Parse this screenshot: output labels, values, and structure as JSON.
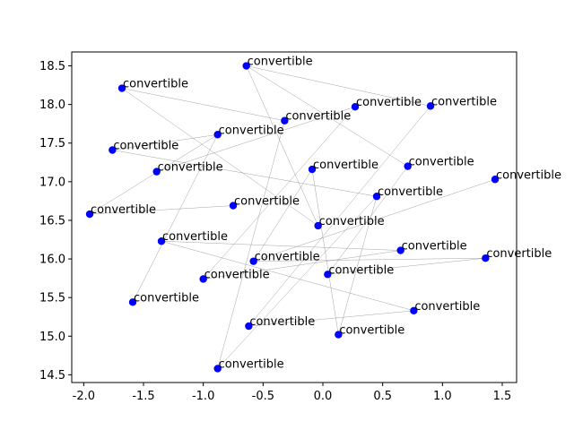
{
  "chart_data": {
    "type": "scatter",
    "title": "",
    "xlabel": "",
    "ylabel": "",
    "xlim": [
      -2.1,
      1.62
    ],
    "ylim": [
      14.4,
      18.68
    ],
    "xticks": [
      -2.0,
      -1.5,
      -1.0,
      -0.5,
      0.0,
      0.5,
      1.0,
      1.5
    ],
    "yticks": [
      14.5,
      15.0,
      15.5,
      16.0,
      16.5,
      17.0,
      17.5,
      18.0,
      18.5
    ],
    "grid": false,
    "marker_color": "#0000ff",
    "edge_color": "#808080",
    "points": [
      {
        "x": -0.64,
        "y": 18.5,
        "label": "convertible"
      },
      {
        "x": -1.68,
        "y": 18.21,
        "label": "convertible"
      },
      {
        "x": 0.27,
        "y": 17.97,
        "label": "convertible"
      },
      {
        "x": 0.9,
        "y": 17.98,
        "label": "convertible"
      },
      {
        "x": -0.32,
        "y": 17.79,
        "label": "convertible"
      },
      {
        "x": -0.88,
        "y": 17.61,
        "label": "convertible"
      },
      {
        "x": -1.76,
        "y": 17.41,
        "label": "convertible"
      },
      {
        "x": -1.39,
        "y": 17.13,
        "label": "convertible"
      },
      {
        "x": -0.09,
        "y": 17.16,
        "label": "convertible"
      },
      {
        "x": 0.71,
        "y": 17.2,
        "label": "convertible"
      },
      {
        "x": 1.44,
        "y": 17.03,
        "label": "convertible"
      },
      {
        "x": 0.45,
        "y": 16.81,
        "label": "convertible"
      },
      {
        "x": -0.75,
        "y": 16.69,
        "label": "convertible"
      },
      {
        "x": -1.95,
        "y": 16.58,
        "label": "convertible"
      },
      {
        "x": -0.04,
        "y": 16.43,
        "label": "convertible"
      },
      {
        "x": -1.35,
        "y": 16.23,
        "label": "convertible"
      },
      {
        "x": 0.65,
        "y": 16.11,
        "label": "convertible"
      },
      {
        "x": 1.36,
        "y": 16.01,
        "label": "convertible"
      },
      {
        "x": -0.58,
        "y": 15.97,
        "label": "convertible"
      },
      {
        "x": 0.04,
        "y": 15.8,
        "label": "convertible"
      },
      {
        "x": -1.0,
        "y": 15.74,
        "label": "convertible"
      },
      {
        "x": -1.59,
        "y": 15.44,
        "label": "convertible"
      },
      {
        "x": 0.76,
        "y": 15.33,
        "label": "convertible"
      },
      {
        "x": -0.62,
        "y": 15.13,
        "label": "convertible"
      },
      {
        "x": 0.13,
        "y": 15.02,
        "label": "convertible"
      },
      {
        "x": -0.88,
        "y": 14.58,
        "label": "convertible"
      }
    ],
    "edges": [
      [
        0,
        3
      ],
      [
        0,
        9
      ],
      [
        1,
        4
      ],
      [
        1,
        14
      ],
      [
        2,
        7
      ],
      [
        2,
        20
      ],
      [
        3,
        23
      ],
      [
        4,
        25
      ],
      [
        5,
        6
      ],
      [
        5,
        13
      ],
      [
        5,
        21
      ],
      [
        6,
        11
      ],
      [
        8,
        18
      ],
      [
        8,
        24
      ],
      [
        9,
        19
      ],
      [
        10,
        18
      ],
      [
        11,
        25
      ],
      [
        12,
        13
      ],
      [
        15,
        16
      ],
      [
        15,
        22
      ],
      [
        17,
        19
      ],
      [
        16,
        20
      ],
      [
        22,
        23
      ],
      [
        24,
        11
      ],
      [
        18,
        17
      ],
      [
        14,
        0
      ]
    ]
  }
}
